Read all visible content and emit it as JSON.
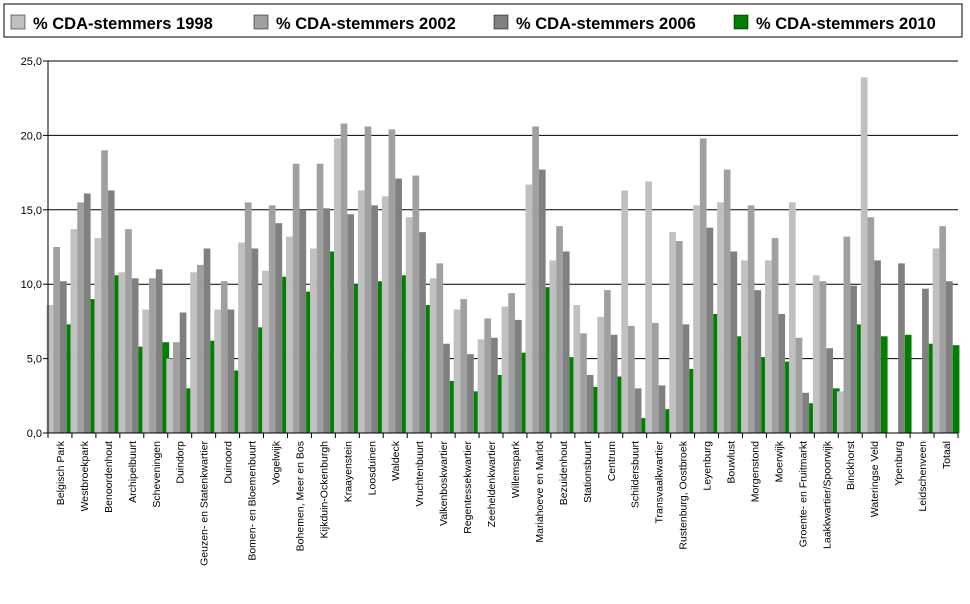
{
  "chart_data": {
    "type": "bar",
    "title": "",
    "xlabel": "",
    "ylabel": "",
    "ylim": [
      0,
      25
    ],
    "yticks": [
      "0,0",
      "5,0",
      "10,0",
      "15,0",
      "20,0",
      "25,0"
    ],
    "grid": true,
    "legend_position": "top",
    "categories": [
      "Belgisch Park",
      "Westbroekpark",
      "Benoordenhout",
      "Archipelbuurt",
      "Scheveningen",
      "Duindorp",
      "Geuzen- en Statenkwartier",
      "Duinoord",
      "Bomen- en Bloemenbuurt",
      "Vogelwijk",
      "Bohemen, Meer en Bos",
      "Kijkduin-Ockenburgh",
      "Kraayenstein",
      "Loosduinen",
      "Waldeck",
      "Vruchtenbuurt",
      "Valkenboskwartier",
      "Regentessekwartier",
      "Zeeheldenkwartier",
      "Willemspark",
      "Mariahoeve en Marlot",
      "Bezuidenhout",
      "Stationsbuurt",
      "Centrum",
      "Schildersbuurt",
      "Transvaalkwartier",
      "Rustenburg, Oostbroek",
      "Leyenburg",
      "Bouwlust",
      "Morgenstond",
      "Moerwijk",
      "Groente- en Fruitmarkt",
      "Laakkwartier/Spoorwijk",
      "Binckhorst",
      "Wateringse Veld",
      "Ypenburg",
      "Leidschenveen",
      "Totaal"
    ],
    "series": [
      {
        "name": "% CDA-stemmers 1998",
        "color": "#c0c0c0",
        "values": [
          8.6,
          13.7,
          13.1,
          10.8,
          8.3,
          5.0,
          10.8,
          8.3,
          12.8,
          10.9,
          13.2,
          12.4,
          19.8,
          16.3,
          15.9,
          14.5,
          10.4,
          8.3,
          6.3,
          8.5,
          16.7,
          11.6,
          8.6,
          7.8,
          16.3,
          16.9,
          13.5,
          15.3,
          15.5,
          11.6,
          11.6,
          15.5,
          10.6,
          2.8,
          23.9,
          0,
          0,
          12.4
        ]
      },
      {
        "name": "% CDA-stemmers 2002",
        "color": "#a0a0a0",
        "values": [
          12.5,
          15.5,
          19.0,
          13.7,
          10.4,
          6.1,
          11.3,
          10.2,
          15.5,
          15.3,
          18.1,
          18.1,
          20.8,
          20.6,
          20.4,
          17.3,
          11.4,
          9.0,
          7.7,
          9.4,
          20.6,
          13.9,
          6.7,
          9.6,
          7.2,
          7.4,
          12.9,
          19.8,
          17.7,
          15.3,
          13.1,
          6.4,
          10.2,
          13.2,
          14.5,
          0,
          0,
          13.9
        ]
      },
      {
        "name": "% CDA-stemmers 2006",
        "color": "#808080",
        "values": [
          10.2,
          16.1,
          16.3,
          10.4,
          11.0,
          8.1,
          12.4,
          8.3,
          12.4,
          14.1,
          15.0,
          15.1,
          14.7,
          15.3,
          17.1,
          13.5,
          6.0,
          5.3,
          6.4,
          7.6,
          17.7,
          12.2,
          3.9,
          6.6,
          3.0,
          3.2,
          7.3,
          13.8,
          12.2,
          9.6,
          8.0,
          2.7,
          5.7,
          9.9,
          11.6,
          11.4,
          9.7,
          10.2
        ]
      },
      {
        "name": "% CDA-stemmers 2010",
        "color": "#008000",
        "values": [
          7.3,
          9.0,
          10.6,
          5.8,
          6.1,
          3.0,
          6.2,
          4.2,
          7.1,
          10.5,
          9.5,
          12.2,
          10.0,
          10.2,
          10.6,
          8.6,
          3.5,
          2.8,
          3.9,
          5.4,
          9.8,
          5.1,
          3.1,
          3.8,
          1.0,
          1.6,
          4.3,
          8.0,
          6.5,
          5.1,
          4.8,
          2.0,
          3.0,
          7.3,
          6.5,
          6.6,
          6.0,
          5.9
        ]
      }
    ]
  }
}
